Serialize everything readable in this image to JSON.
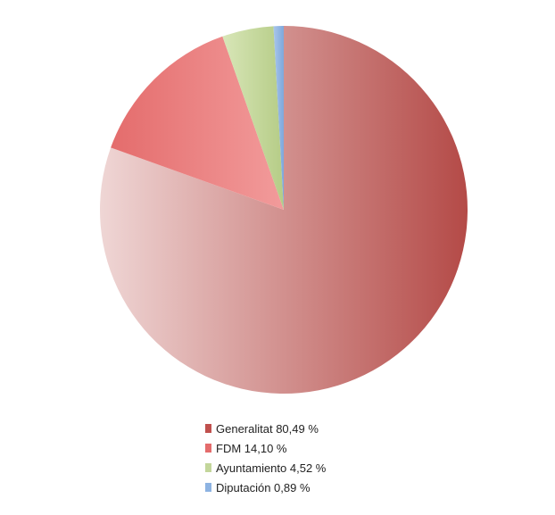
{
  "chart_data": {
    "type": "pie",
    "slices": [
      {
        "label": "Generalitat",
        "value": 80.49,
        "value_text": "80,49 %",
        "color": "#c0504d"
      },
      {
        "label": "FDM",
        "value": 14.1,
        "value_text": "14,10 %",
        "color": "#e46c6c"
      },
      {
        "label": "Ayuntamiento",
        "value": 4.52,
        "value_text": "4,52 %",
        "color": "#c3d69b"
      },
      {
        "label": "Diputación",
        "value": 0.89,
        "value_text": "0,89 %",
        "color": "#8db3e2"
      }
    ],
    "start_angle_deg": 0,
    "direction": "clockwise",
    "legend_position": "bottom"
  }
}
